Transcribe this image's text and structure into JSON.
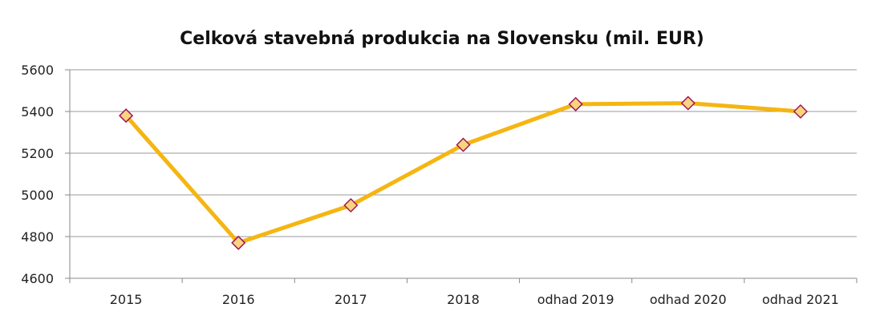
{
  "chart_data": {
    "type": "line",
    "title": "Celková stavebná produkcia na Slovensku  (mil. EUR)",
    "xlabel": "",
    "ylabel": "",
    "categories": [
      "2015",
      "2016",
      "2017",
      "2018",
      "odhad 2019",
      "odhad 2020",
      "odhad 2021"
    ],
    "series": [
      {
        "values": [
          5380,
          4770,
          4950,
          5240,
          5435,
          5440,
          5400
        ]
      }
    ],
    "ylim": [
      4600,
      5600
    ],
    "yticks": [
      4600,
      4800,
      5000,
      5200,
      5400,
      5600
    ],
    "grid": true,
    "legend": "none",
    "colors": {
      "line": "#F5B512",
      "marker_fill": "#F8D47E",
      "marker_stroke": "#A0155A",
      "grid": "#9A9A9A",
      "axis": "#8A8A8A"
    }
  }
}
